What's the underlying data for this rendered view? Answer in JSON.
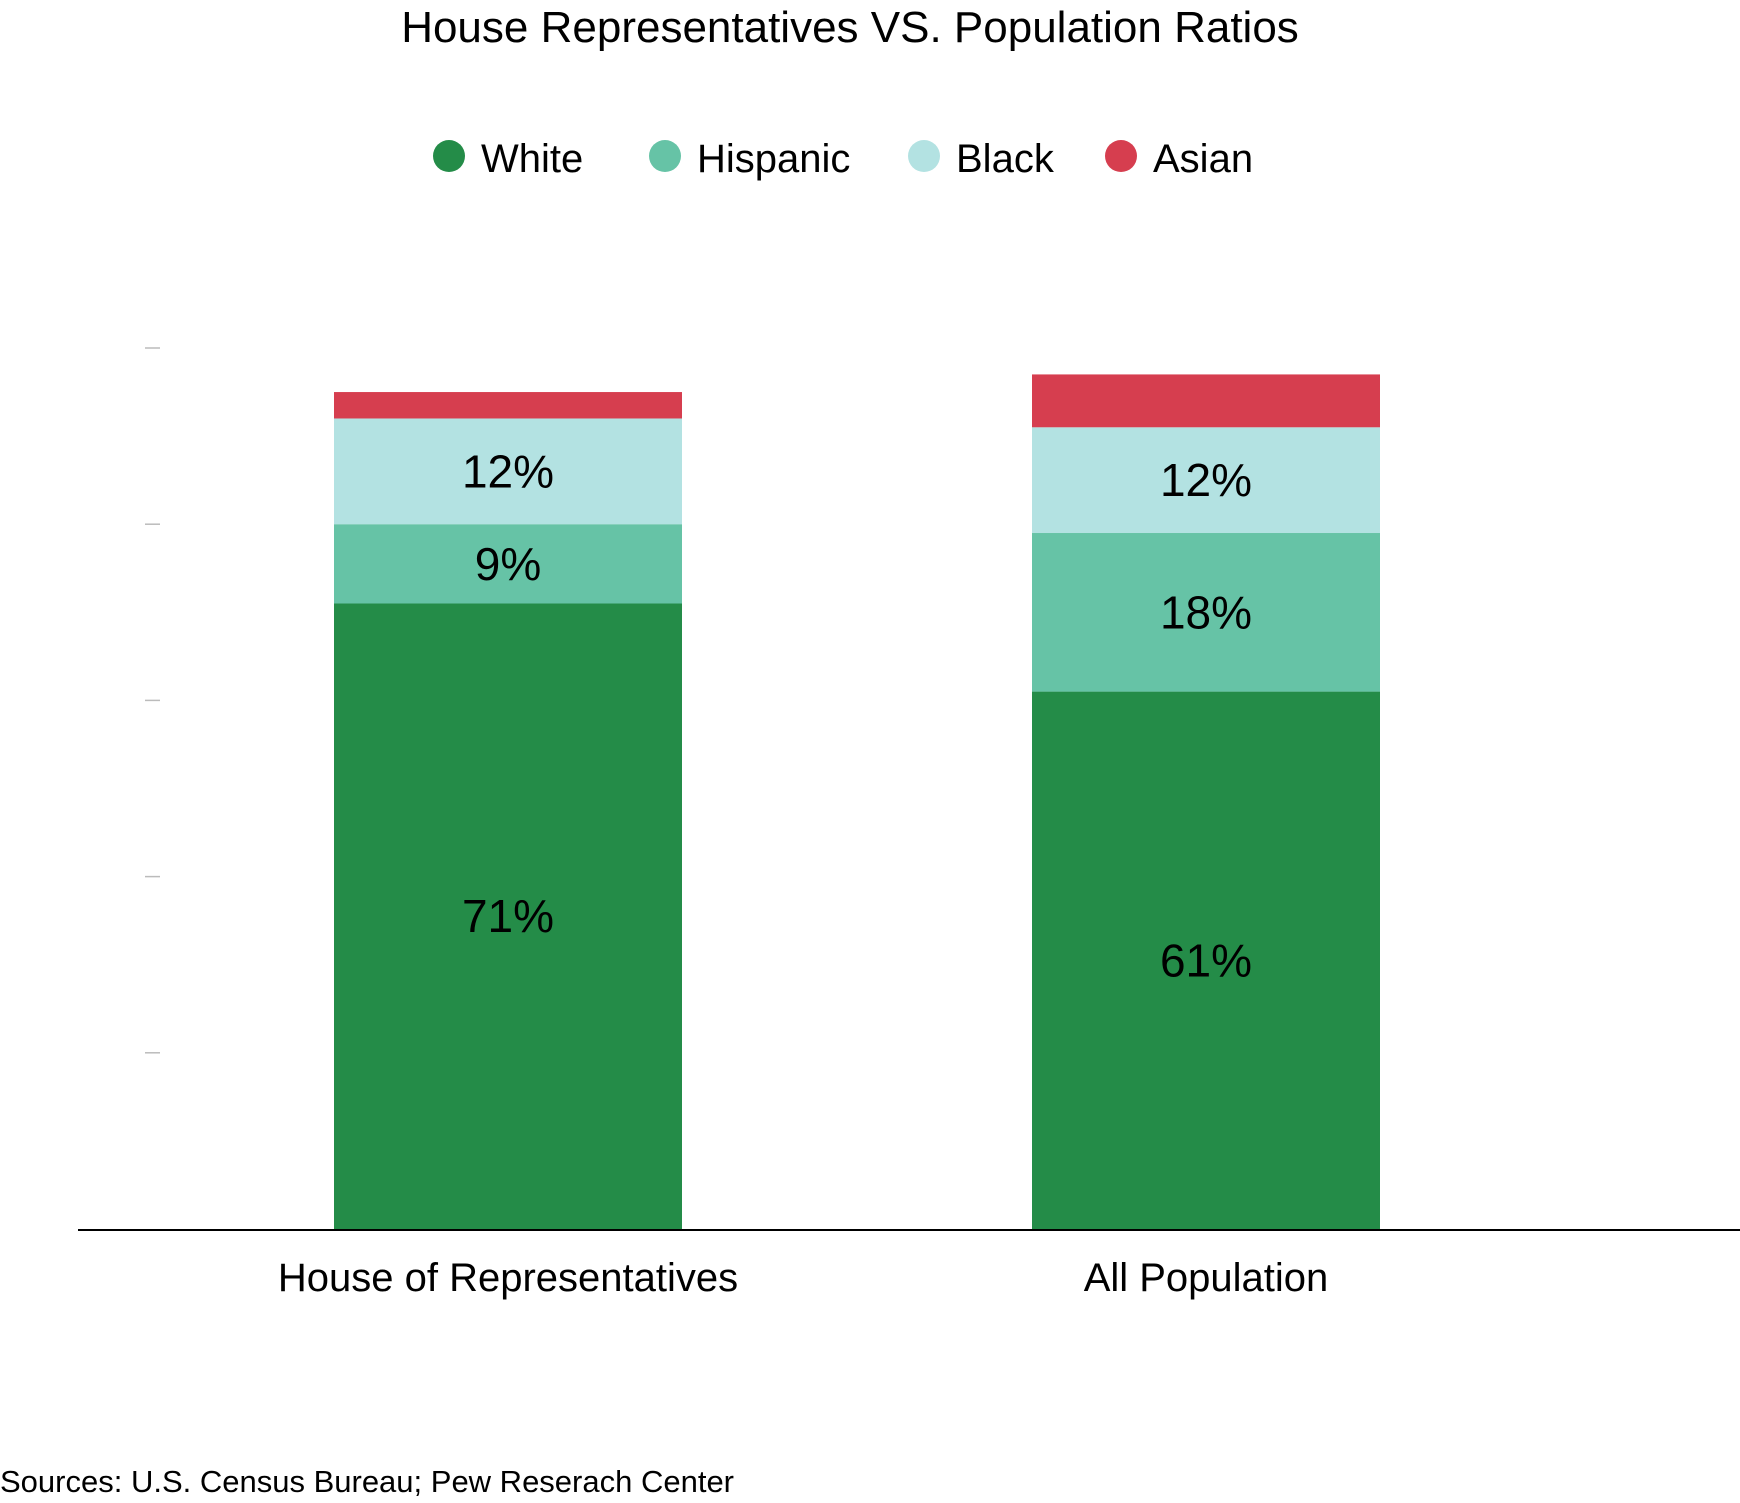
{
  "chart_data": {
    "type": "bar",
    "stacked": true,
    "title": "House Representatives VS. Population Ratios",
    "categories": [
      "House of Representatives",
      "All Population"
    ],
    "series": [
      {
        "name": "White",
        "color": "#248C48",
        "values": [
          71,
          61
        ],
        "labels": [
          "71%",
          "61%"
        ]
      },
      {
        "name": "Hispanic",
        "color": "#66C3A6",
        "values": [
          9,
          18
        ],
        "labels": [
          "9%",
          "18%"
        ]
      },
      {
        "name": "Black",
        "color": "#B3E2E2",
        "values": [
          12,
          12
        ],
        "labels": [
          "12%",
          "12%"
        ]
      },
      {
        "name": "Asian",
        "color": "#D63E4F",
        "values": [
          3,
          6
        ],
        "labels": [
          "",
          ""
        ]
      }
    ],
    "ylim": [
      0,
      100
    ],
    "yticks": [
      20,
      40,
      60,
      80,
      100
    ],
    "xlabel": "",
    "ylabel": "",
    "legend_position": "top",
    "grid": false,
    "source": "Sources: U.S. Census Bureau; Pew Reserach Center"
  }
}
